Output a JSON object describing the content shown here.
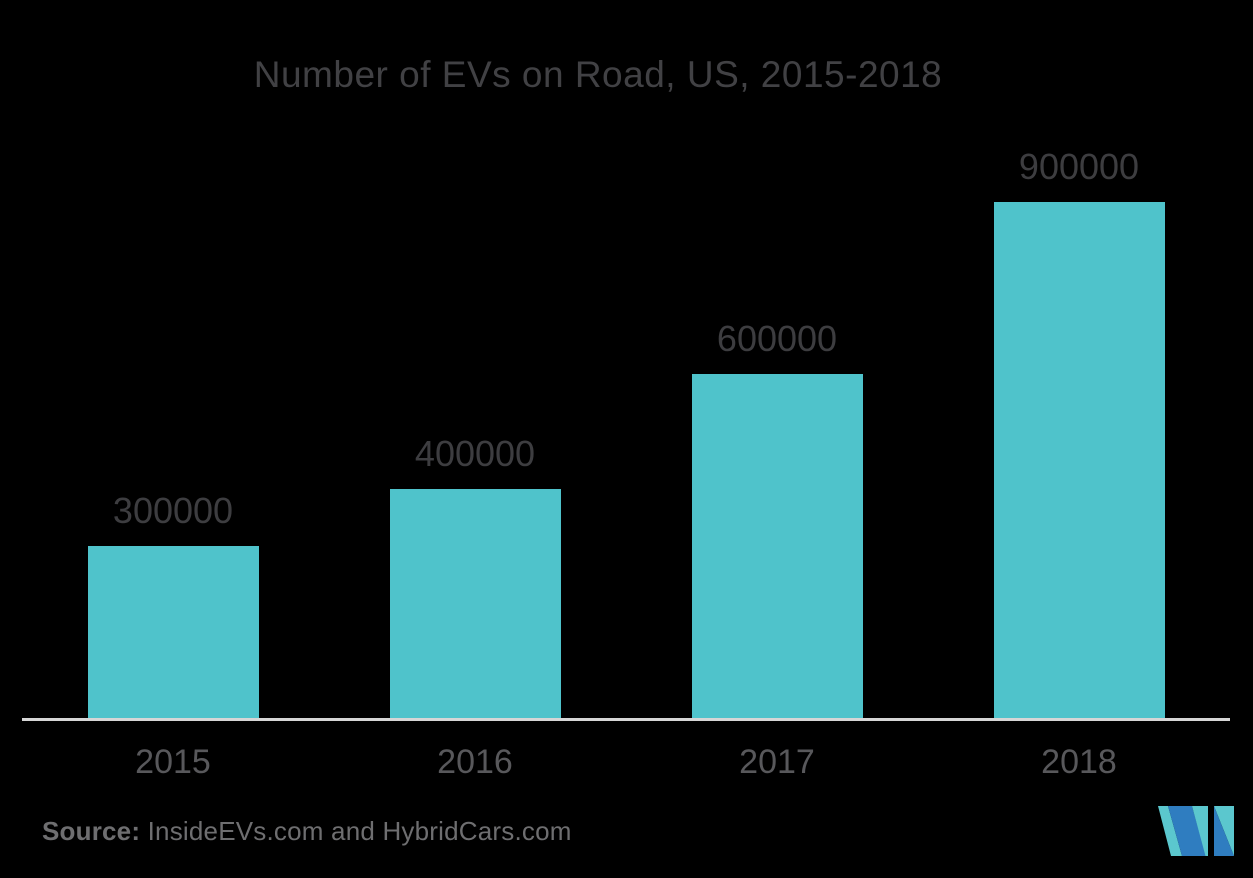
{
  "chart_data": {
    "type": "bar",
    "title": "Number of EVs on Road, US, 2015-2018",
    "categories": [
      "2015",
      "2016",
      "2017",
      "2018"
    ],
    "values": [
      300000,
      400000,
      600000,
      900000
    ],
    "data_labels": [
      "300000",
      "400000",
      "600000",
      "900000"
    ],
    "xlabel": "",
    "ylabel": "",
    "ylim": [
      0,
      1000000
    ],
    "grid": false,
    "legend": "none",
    "y_axis_visible": false,
    "x_baseline_visible": true
  },
  "footer": {
    "source_label": "Source:",
    "source_text": " InsideEVs.com and HybridCars.com"
  },
  "icons": {
    "brand_logo": "mordor-intelligence-logo"
  },
  "colors": {
    "background": "#000000",
    "bar": "#4FC3CB",
    "title_text": "#414144",
    "value_text": "#3D3D40",
    "year_text": "#58585B",
    "axis_line": "#D6D6D6",
    "source_text": "#6E6E70",
    "logo_teal": "#5BC7CE",
    "logo_blue": "#2F7DC0"
  }
}
